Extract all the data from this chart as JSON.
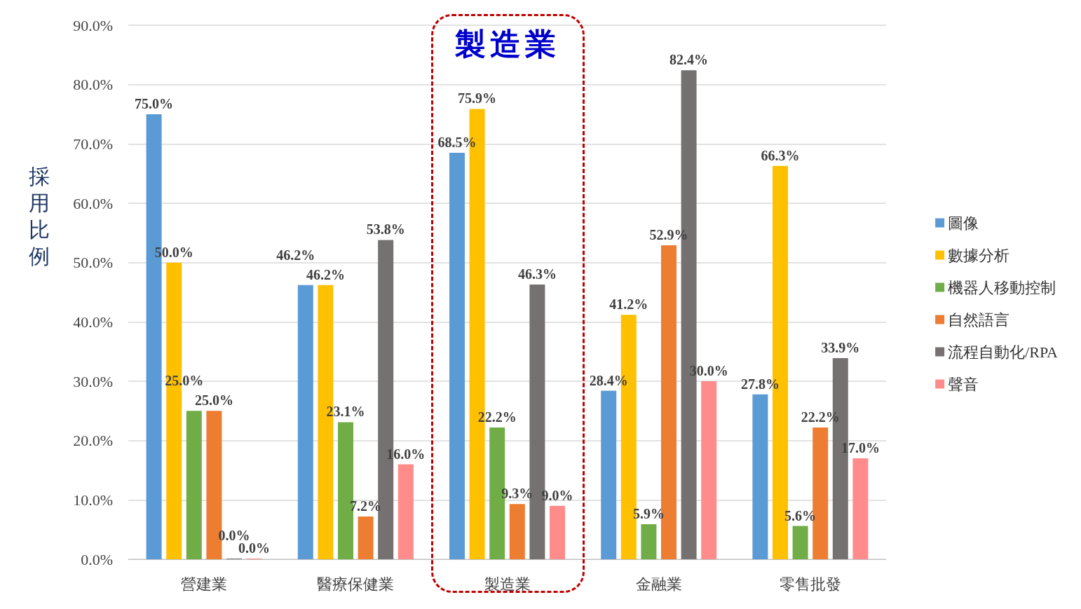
{
  "chart_data": {
    "type": "bar",
    "ylabel": "採用比例",
    "categories": [
      "營建業",
      "醫療保健業",
      "製造業",
      "金融業",
      "零售批發"
    ],
    "series": [
      {
        "name": "圖像",
        "color": "#5b9bd5",
        "values": [
          75.0,
          46.2,
          68.5,
          28.4,
          27.8
        ],
        "value_labels": [
          "75.0%",
          "46.2%",
          "68.5%",
          "28.4%",
          "27.8%"
        ]
      },
      {
        "name": "數據分析",
        "color": "#ffc000",
        "values": [
          50.0,
          46.2,
          75.9,
          41.2,
          66.3
        ],
        "value_labels": [
          "50.0%",
          "46.2%",
          "75.9%",
          "41.2%",
          "66.3%"
        ]
      },
      {
        "name": "機器人移動控制",
        "color": "#70ad47",
        "values": [
          25.0,
          23.1,
          22.2,
          5.9,
          5.6
        ],
        "value_labels": [
          "25.0%",
          "23.1%",
          "22.2%",
          "5.9%",
          "5.6%"
        ]
      },
      {
        "name": "自然語言",
        "color": "#ed7d31",
        "values": [
          25.0,
          7.2,
          9.3,
          52.9,
          22.2
        ],
        "value_labels": [
          "25.0%",
          "7.2%",
          "9.3%",
          "52.9%",
          "22.2%"
        ]
      },
      {
        "name": "流程自動化/RPA",
        "color": "#767171",
        "values": [
          0.0,
          53.8,
          46.3,
          82.4,
          33.9
        ],
        "value_labels": [
          "0.0%",
          "53.8%",
          "46.3%",
          "82.4%",
          "33.9%"
        ]
      },
      {
        "name": "聲音",
        "color": "#ff8b8b",
        "values": [
          0.0,
          16.0,
          9.0,
          30.0,
          17.0
        ],
        "value_labels": [
          "0.0%",
          "16.0%",
          "9.0%",
          "30.0%",
          "17.0%"
        ]
      }
    ],
    "ylim": [
      0,
      90
    ],
    "yticks": [
      {
        "value": 0,
        "label": "0.0%"
      },
      {
        "value": 10,
        "label": "10.0%"
      },
      {
        "value": 20,
        "label": "20.0%"
      },
      {
        "value": 30,
        "label": "30.0%"
      },
      {
        "value": 40,
        "label": "40.0%"
      },
      {
        "value": 50,
        "label": "50.0%"
      },
      {
        "value": 60,
        "label": "60.0%"
      },
      {
        "value": 70,
        "label": "70.0%"
      },
      {
        "value": 80,
        "label": "80.0%"
      },
      {
        "value": 90,
        "label": "90.0%"
      }
    ],
    "grid": "y",
    "legend": "right",
    "annotations": [
      "製造業"
    ]
  }
}
